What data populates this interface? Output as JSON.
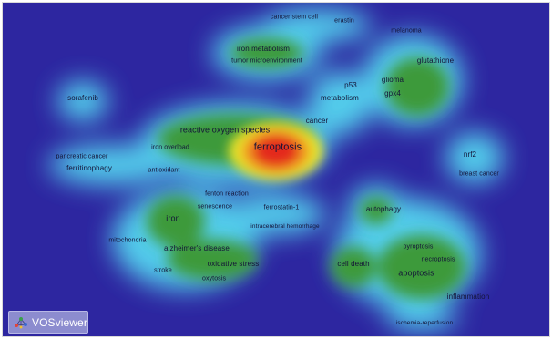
{
  "logo": {
    "text": "VOSviewer",
    "icon": "vosviewer-network-icon"
  },
  "colors": {
    "background": "#2d26a0",
    "density_low": "#53d9f0",
    "density_mid": "#3aa43a",
    "density_high": "#f2ea2a",
    "density_peak": "#e4261c"
  },
  "keywords": [
    "cancer stem cell",
    "erastin",
    "melanoma",
    "iron metabolism",
    "tumor microenvironment",
    "glutathione",
    "sorafenib",
    "p53",
    "glioma",
    "metabolism",
    "gpx4",
    "cancer",
    "reactive oxygen species",
    "ferroptosis",
    "iron overload",
    "pancreatic cancer",
    "ferritinophagy",
    "antioxidant",
    "nrf2",
    "breast cancer",
    "fenton reaction",
    "senescence",
    "ferrostatin-1",
    "intracerebral hemorrhage",
    "iron",
    "autophagy",
    "mitochondria",
    "alzheimer's disease",
    "oxidative stress",
    "stroke",
    "oxytosis",
    "cell death",
    "pyroptosis",
    "necroptosis",
    "apoptosis",
    "inflammation",
    "ischemia-reperfusion"
  ]
}
